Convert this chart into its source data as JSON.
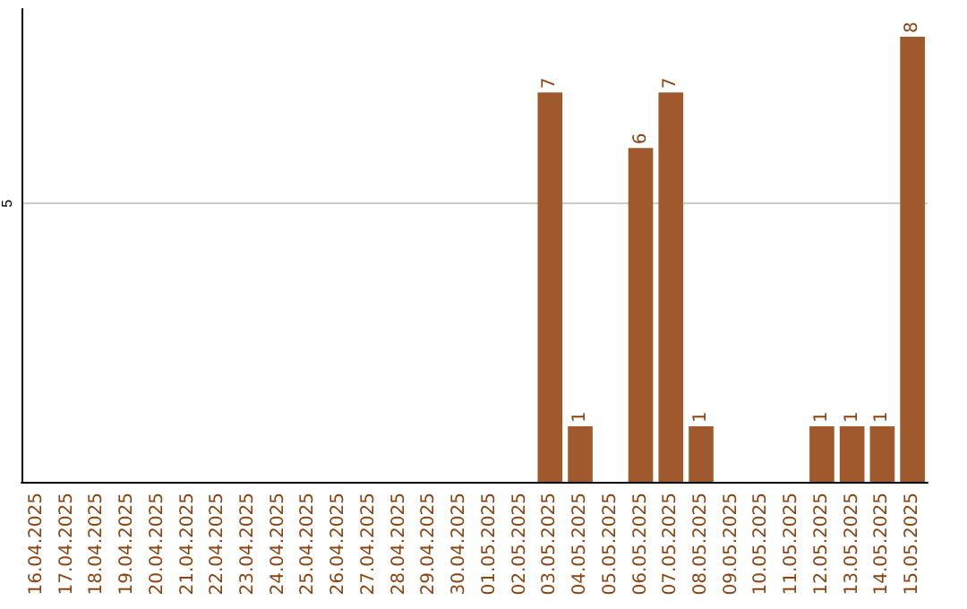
{
  "chart_data": {
    "type": "bar",
    "categories": [
      "16.04.2025",
      "17.04.2025",
      "18.04.2025",
      "19.04.2025",
      "20.04.2025",
      "21.04.2025",
      "22.04.2025",
      "23.04.2025",
      "24.04.2025",
      "25.04.2025",
      "26.04.2025",
      "27.04.2025",
      "28.04.2025",
      "29.04.2025",
      "30.04.2025",
      "01.05.2025",
      "02.05.2025",
      "03.05.2025",
      "04.05.2025",
      "05.05.2025",
      "06.05.2025",
      "07.05.2025",
      "08.05.2025",
      "09.05.2025",
      "10.05.2025",
      "11.05.2025",
      "12.05.2025",
      "13.05.2025",
      "14.05.2025",
      "15.05.2025"
    ],
    "values": [
      null,
      null,
      null,
      null,
      null,
      null,
      null,
      null,
      null,
      null,
      null,
      null,
      null,
      null,
      null,
      null,
      null,
      7,
      1,
      null,
      6,
      7,
      1,
      null,
      null,
      null,
      1,
      1,
      1,
      8
    ],
    "color": "#a0592c",
    "ylim": [
      0,
      8.5
    ],
    "yticks": [
      5
    ],
    "grid": "y",
    "data_labels": true
  }
}
